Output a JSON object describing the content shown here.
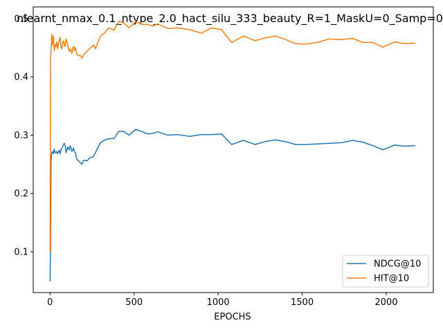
{
  "chart_data": {
    "type": "line",
    "title": "nlearnt_nmax_0.1_ntype_2.0_hact_silu_333_beauty_R=1_MaskU=0_Samp=0_",
    "xlabel": "EPOCHS",
    "ylabel": "",
    "xlim": [
      -100,
      2280
    ],
    "ylim": [
      0.03,
      0.52
    ],
    "xticks": [
      0,
      500,
      1000,
      1500,
      2000
    ],
    "yticks": [
      0.1,
      0.2,
      0.3,
      0.4,
      0.5
    ],
    "grid": false,
    "legend": "lower-right",
    "series": [
      {
        "name": "NDCG@10",
        "color": "#1f77b4",
        "x": [
          0,
          3,
          6,
          10,
          15,
          20,
          25,
          30,
          35,
          40,
          45,
          50,
          55,
          60,
          65,
          70,
          75,
          80,
          85,
          90,
          95,
          100,
          105,
          110,
          115,
          120,
          125,
          130,
          135,
          140,
          145,
          150,
          160,
          170,
          180,
          190,
          200,
          220,
          240,
          250,
          260,
          270,
          280,
          300,
          320,
          350,
          380,
          410,
          440,
          470,
          510,
          550,
          580,
          610,
          640,
          700,
          760,
          830,
          900,
          960,
          1020,
          1080,
          1150,
          1220,
          1280,
          1340,
          1400,
          1460,
          1520,
          1590,
          1660,
          1730,
          1800,
          1860,
          1920,
          1980,
          2050,
          2110,
          2170
        ],
        "values": [
          0.05,
          0.11,
          0.255,
          0.27,
          0.272,
          0.268,
          0.276,
          0.27,
          0.27,
          0.272,
          0.268,
          0.272,
          0.274,
          0.268,
          0.275,
          0.278,
          0.28,
          0.284,
          0.286,
          0.282,
          0.27,
          0.275,
          0.28,
          0.276,
          0.275,
          0.282,
          0.278,
          0.272,
          0.274,
          0.278,
          0.272,
          0.27,
          0.258,
          0.256,
          0.253,
          0.25,
          0.257,
          0.256,
          0.262,
          0.262,
          0.264,
          0.27,
          0.276,
          0.287,
          0.291,
          0.294,
          0.294,
          0.307,
          0.306,
          0.3,
          0.31,
          0.306,
          0.302,
          0.303,
          0.306,
          0.3,
          0.301,
          0.298,
          0.301,
          0.301,
          0.302,
          0.284,
          0.291,
          0.284,
          0.289,
          0.292,
          0.289,
          0.284,
          0.284,
          0.285,
          0.286,
          0.287,
          0.291,
          0.288,
          0.282,
          0.275,
          0.283,
          0.281,
          0.282
        ]
      },
      {
        "name": "HIT@10",
        "color": "#ff7f0e",
        "x": [
          0,
          3,
          6,
          10,
          15,
          20,
          25,
          30,
          35,
          40,
          45,
          50,
          55,
          60,
          65,
          70,
          75,
          80,
          85,
          90,
          95,
          100,
          105,
          110,
          115,
          120,
          125,
          130,
          135,
          140,
          145,
          150,
          160,
          170,
          180,
          190,
          200,
          220,
          240,
          250,
          260,
          270,
          280,
          300,
          320,
          350,
          380,
          410,
          440,
          470,
          510,
          550,
          580,
          610,
          640,
          700,
          760,
          830,
          900,
          960,
          1020,
          1080,
          1150,
          1220,
          1280,
          1340,
          1400,
          1460,
          1520,
          1590,
          1660,
          1730,
          1800,
          1860,
          1920,
          1980,
          2050,
          2110,
          2170
        ],
        "values": [
          0.1,
          0.43,
          0.445,
          0.473,
          0.455,
          0.47,
          0.445,
          0.455,
          0.452,
          0.46,
          0.448,
          0.455,
          0.462,
          0.468,
          0.45,
          0.448,
          0.46,
          0.462,
          0.455,
          0.452,
          0.465,
          0.46,
          0.455,
          0.448,
          0.444,
          0.448,
          0.445,
          0.44,
          0.45,
          0.452,
          0.445,
          0.45,
          0.438,
          0.436,
          0.437,
          0.432,
          0.438,
          0.444,
          0.45,
          0.452,
          0.455,
          0.448,
          0.456,
          0.47,
          0.474,
          0.484,
          0.48,
          0.496,
          0.492,
          0.484,
          0.495,
          0.49,
          0.49,
          0.487,
          0.491,
          0.483,
          0.484,
          0.481,
          0.475,
          0.484,
          0.481,
          0.459,
          0.47,
          0.462,
          0.467,
          0.47,
          0.464,
          0.457,
          0.456,
          0.459,
          0.465,
          0.464,
          0.466,
          0.459,
          0.459,
          0.451,
          0.46,
          0.457,
          0.458
        ]
      }
    ]
  }
}
